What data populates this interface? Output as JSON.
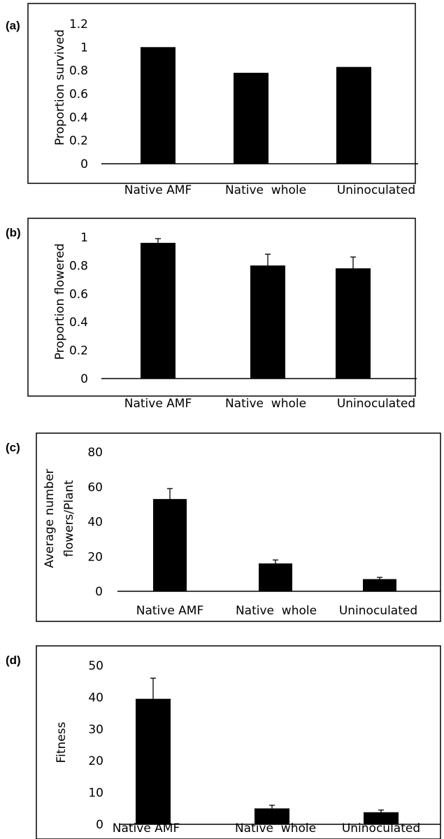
{
  "chart_data": [
    {
      "type": "bar",
      "panel": "(a)",
      "ylabel": [
        "Proportion survived"
      ],
      "categories": [
        "Native AMF",
        "Native  whole",
        "Uninoculated"
      ],
      "values": [
        1.0,
        0.78,
        0.83
      ],
      "errors": [
        0,
        0,
        0
      ],
      "ylim": [
        0,
        1.2
      ],
      "yticks": [
        "0",
        "0.2",
        "0.4",
        "0.6",
        "0.8",
        "1",
        "1.2"
      ],
      "grid": false
    },
    {
      "type": "bar",
      "panel": "(b)",
      "ylabel": [
        "Proportion flowered"
      ],
      "categories": [
        "Native AMF",
        "Native  whole",
        "Uninoculated"
      ],
      "values": [
        0.96,
        0.8,
        0.78
      ],
      "errors": [
        0.03,
        0.08,
        0.08
      ],
      "ylim": [
        0,
        1.0
      ],
      "yticks": [
        "0",
        "0.2",
        "0.4",
        "0.6",
        "0.8",
        "1"
      ],
      "grid": false
    },
    {
      "type": "bar",
      "panel": "(c)",
      "ylabel": [
        "Average number",
        "flowers/Plant"
      ],
      "categories": [
        "Native AMF",
        "Native  whole",
        "Uninoculated"
      ],
      "values": [
        53,
        16,
        7
      ],
      "errors": [
        6,
        2,
        1
      ],
      "ylim": [
        0,
        80
      ],
      "yticks": [
        "0",
        "20",
        "40",
        "60",
        "80"
      ],
      "grid": false
    },
    {
      "type": "bar",
      "panel": "(d)",
      "ylabel": [
        "Fitness"
      ],
      "categories": [
        "Native AMF",
        "Native  whole",
        "Uninoculated"
      ],
      "values": [
        39.5,
        5.0,
        3.8
      ],
      "errors": [
        6.5,
        1.0,
        0.7
      ],
      "ylim": [
        0,
        50
      ],
      "yticks": [
        "0",
        "10",
        "20",
        "30",
        "40",
        "50"
      ],
      "grid": false
    }
  ]
}
